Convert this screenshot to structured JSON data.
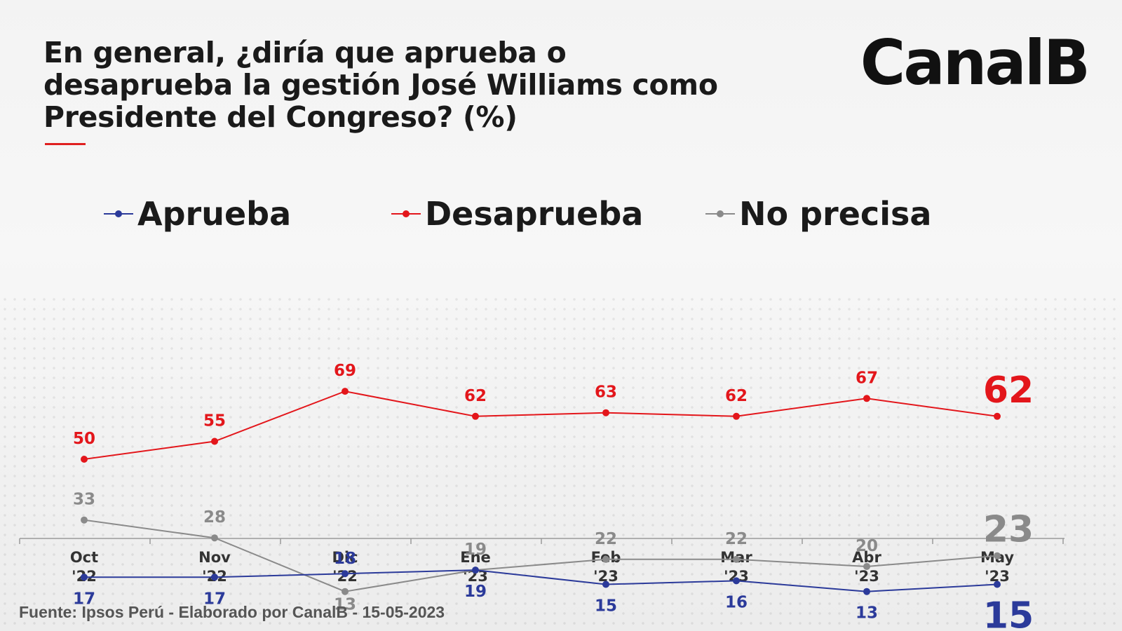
{
  "title": "En general, ¿diría que aprueba o desaprueba la gestión José Williams como Presidente del Congreso? (%)",
  "brand": "CanalB",
  "source": "Fuente: Ipsos Perú - Elaborado por CanalB - 15-05-2023",
  "colors": {
    "aprueba": "#2b3a9a",
    "desaprueba": "#e3161b",
    "no_precisa": "#8a8a8a",
    "title_rule": "#e02020"
  },
  "chart_data": {
    "type": "line",
    "categories": [
      [
        "Oct",
        "'22"
      ],
      [
        "Nov",
        "'22"
      ],
      [
        "Dic",
        "'22"
      ],
      [
        "Ene",
        "'23"
      ],
      [
        "Feb",
        "'23"
      ],
      [
        "Mar",
        "'23"
      ],
      [
        "Abr",
        "'23"
      ],
      [
        "May",
        "'23"
      ]
    ],
    "series": [
      {
        "key": "desaprueba",
        "name": "Desaprueba",
        "values": [
          50,
          55,
          69,
          62,
          63,
          62,
          67,
          62
        ]
      },
      {
        "key": "no_precisa",
        "name": "No precisa",
        "values": [
          33,
          28,
          13,
          19,
          22,
          22,
          20,
          23
        ]
      },
      {
        "key": "aprueba",
        "name": "Aprueba",
        "values": [
          17,
          17,
          18,
          19,
          15,
          16,
          13,
          15
        ]
      }
    ],
    "legend": [
      "Aprueba",
      "Desaprueba",
      "No precisa"
    ],
    "legend_position": "top",
    "grid": false
  }
}
